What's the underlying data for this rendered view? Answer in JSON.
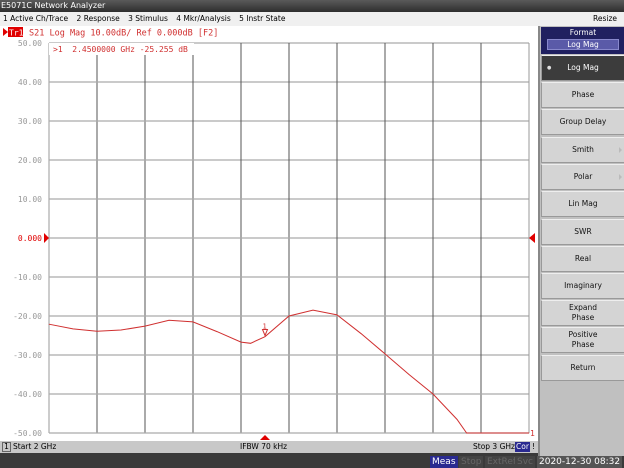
{
  "window": {
    "title": "E5071C Network Analyzer",
    "resize_label": "Resize"
  },
  "menu": [
    "1 Active Ch/Trace",
    "2 Response",
    "3 Stimulus",
    "4 Mkr/Analysis",
    "5 Instr State"
  ],
  "trace": {
    "badge": "Tr1",
    "header": "S21 Log Mag 10.00dB/ Ref 0.000dB [F2]",
    "color": "#d03030"
  },
  "marker": {
    "readout": ">1  2.4500000 GHz -25.255 dB",
    "label": "1",
    "freq_ghz": 2.45,
    "value_db": -25.255,
    "end_label": "1"
  },
  "channel": {
    "number": "1",
    "start": "Start 2 GHz",
    "ifbw": "IFBW 70 kHz",
    "stop": "Stop 3 GHz",
    "cor": "Cor",
    "flag": "!"
  },
  "status": {
    "meas": "Meas",
    "stop": "Stop",
    "extref": "ExtRef",
    "svc": "Svc",
    "datetime": "2020-12-30 08:32"
  },
  "softkeys": {
    "header": "Format",
    "header_value": "Log Mag",
    "items": [
      {
        "label": "Log Mag",
        "selected": true
      },
      {
        "label": "Phase"
      },
      {
        "label": "Group Delay"
      },
      {
        "label": "Smith",
        "submenu": true
      },
      {
        "label": "Polar",
        "submenu": true
      },
      {
        "label": "Lin Mag"
      },
      {
        "label": "SWR"
      },
      {
        "label": "Real"
      },
      {
        "label": "Imaginary"
      },
      {
        "label": "Expand Phase"
      },
      {
        "label": "Positive Phase"
      },
      {
        "label": "Return"
      }
    ]
  },
  "chart_data": {
    "type": "line",
    "xlim": [
      2.0,
      3.0
    ],
    "x_unit": "GHz",
    "ylim": [
      -50,
      50
    ],
    "grid": true,
    "ytick_labels": [
      "50.00",
      "40.00",
      "30.00",
      "20.00",
      "10.00",
      "0.000",
      "-10.00",
      "-20.00",
      "-30.00",
      "-40.00",
      "-50.00"
    ],
    "reference_db": 0,
    "x": [
      2.0,
      2.05,
      2.1,
      2.15,
      2.2,
      2.25,
      2.3,
      2.35,
      2.4,
      2.42,
      2.45,
      2.5,
      2.55,
      2.6,
      2.65,
      2.7,
      2.75,
      2.8,
      2.85,
      2.87,
      2.9,
      2.95,
      3.0
    ],
    "y": [
      -22.1,
      -23.3,
      -23.9,
      -23.6,
      -22.6,
      -21.1,
      -21.5,
      -24.0,
      -26.7,
      -27.0,
      -25.3,
      -20.0,
      -18.5,
      -19.7,
      -24.5,
      -29.7,
      -35.0,
      -40.0,
      -46.5,
      -50,
      -50,
      -50,
      -50
    ]
  }
}
